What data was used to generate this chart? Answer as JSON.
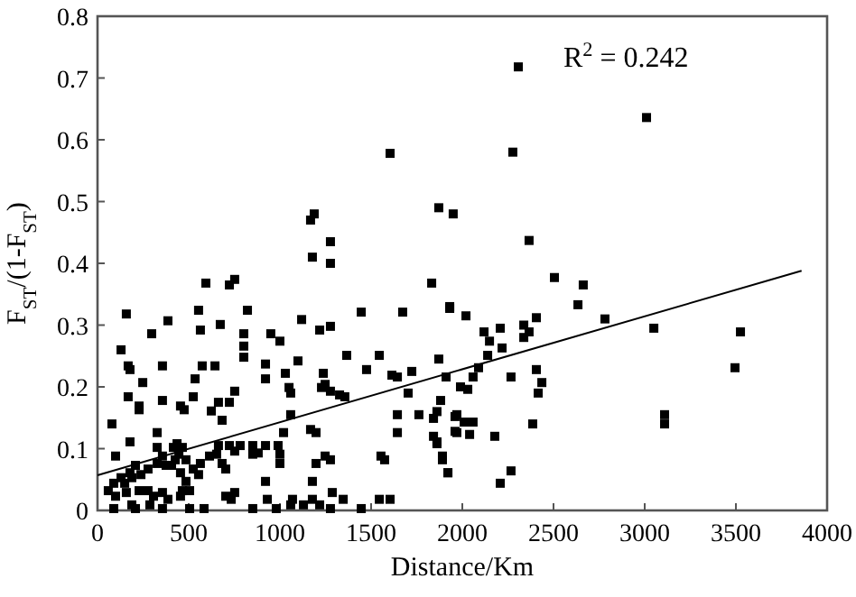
{
  "chart_data": {
    "type": "scatter",
    "xlabel": "Distance/Km",
    "ylabel": "F$_{ST}$/(1-F$_{ST}$)",
    "annotations": [
      "R$^{2}$ = 0.242"
    ],
    "xlim": [
      0,
      4000
    ],
    "xticks": [
      0,
      500,
      1000,
      1500,
      2000,
      2500,
      3000,
      3500,
      4000
    ],
    "ylim": [
      0,
      0.8
    ],
    "yticks": [
      0,
      0.1,
      0.2,
      0.3,
      0.4,
      0.5,
      0.6,
      0.7,
      0.8
    ],
    "series": [
      {
        "color": "#000000",
        "marker": "square",
        "x": [
          1168,
          1188,
          1178,
          1277,
          1277,
          1604,
          1871,
          1950,
          2307,
          2277,
          3010,
          2366,
          2505,
          2663,
          2634,
          2782,
          3050,
          3525,
          3495,
          3109,
          3109,
          1931,
          2020,
          2119,
          2208,
          2337,
          2366,
          2337,
          2406,
          2149,
          2218,
          2139,
          1871,
          2089,
          1911,
          2059,
          1990,
          2030,
          2267,
          2406,
          2436,
          2416,
          1861,
          1960,
          2010,
          2059,
          1960,
          2040,
          2178,
          2386,
          1861,
          1891,
          1921,
          2267,
          2208,
          79,
          99,
          129,
          168,
          178,
          158,
          168,
          178,
          228,
          248,
          228,
          297,
          356,
          386,
          356,
          327,
          327,
          455,
          475,
          535,
          525,
          594,
          554,
          564,
          574,
          723,
          752,
          644,
          673,
          624,
          663,
          723,
          752,
          683,
          822,
          802,
          802,
          802,
          921,
          921,
          950,
          1000,
          1030,
          1099,
          1050,
          1059,
          1059,
          1119,
          1218,
          1277,
          1238,
          1228,
          1248,
          1277,
          1327,
          1356,
          1366,
          1475,
          1446,
          1545,
          1673,
          1614,
          1644,
          1723,
          1832,
          1931,
          1881,
          1703,
          1644,
          1762,
          1644,
          1554,
          1574,
          1545,
          1604,
          1446,
          1842,
          1842,
          1861,
          1891,
          1921,
          1970,
          1970,
          1168,
          1198,
          1248,
          1198,
          1178,
          1277,
          1287,
          1347,
          1178,
          1129,
          1218,
          1277,
          1069,
          1059,
          1000,
          1000,
          990,
          1020,
          921,
          931,
          921,
          851,
          881,
          851,
          782,
          752,
          723,
          663,
          653,
          683,
          703,
          703,
          752,
          733,
          584,
          614,
          564,
          525,
          485,
          465,
          436,
          416,
          446,
          426,
          406,
          455,
          485,
          554,
          505,
          455,
          465,
          356,
          376,
          327,
          277,
          238,
          188,
          149,
          208,
          178,
          129,
          89,
          59,
          99,
          158,
          228,
          277,
          307,
          356,
          386,
          287,
          188,
          89,
          208,
          356,
          505,
          851,
          980
        ],
        "values": [
          0.47,
          0.48,
          0.41,
          0.435,
          0.4,
          0.578,
          0.49,
          0.48,
          0.718,
          0.58,
          0.636,
          0.437,
          0.377,
          0.365,
          0.333,
          0.31,
          0.295,
          0.289,
          0.231,
          0.155,
          0.14,
          0.327,
          0.315,
          0.289,
          0.295,
          0.3,
          0.289,
          0.28,
          0.312,
          0.274,
          0.263,
          0.251,
          0.245,
          0.231,
          0.216,
          0.216,
          0.2,
          0.196,
          0.216,
          0.228,
          0.207,
          0.19,
          0.16,
          0.152,
          0.143,
          0.143,
          0.128,
          0.123,
          0.12,
          0.14,
          0.108,
          0.082,
          0.061,
          0.064,
          0.044,
          0.14,
          0.088,
          0.26,
          0.234,
          0.228,
          0.318,
          0.184,
          0.111,
          0.169,
          0.207,
          0.163,
          0.286,
          0.234,
          0.307,
          0.178,
          0.126,
          0.102,
          0.169,
          0.163,
          0.213,
          0.184,
          0.368,
          0.324,
          0.292,
          0.234,
          0.365,
          0.374,
          0.234,
          0.301,
          0.161,
          0.175,
          0.175,
          0.193,
          0.146,
          0.324,
          0.286,
          0.266,
          0.248,
          0.237,
          0.213,
          0.286,
          0.274,
          0.222,
          0.242,
          0.199,
          0.19,
          0.155,
          0.309,
          0.292,
          0.298,
          0.222,
          0.199,
          0.204,
          0.193,
          0.187,
          0.184,
          0.251,
          0.228,
          0.321,
          0.251,
          0.321,
          0.219,
          0.216,
          0.225,
          0.368,
          0.33,
          0.178,
          0.19,
          0.155,
          0.155,
          0.126,
          0.088,
          0.082,
          0.018,
          0.018,
          0.003,
          0.12,
          0.149,
          0.111,
          0.088,
          0.061,
          0.126,
          0.155,
          0.131,
          0.126,
          0.088,
          0.076,
          0.047,
          0.082,
          0.029,
          0.018,
          0.018,
          0.009,
          0.009,
          0.003,
          0.018,
          0.009,
          0.076,
          0.091,
          0.105,
          0.126,
          0.047,
          0.018,
          0.105,
          0.105,
          0.093,
          0.091,
          0.105,
          0.096,
          0.105,
          0.105,
          0.091,
          0.076,
          0.067,
          0.023,
          0.029,
          0.018,
          0.003,
          0.088,
          0.076,
          0.067,
          0.082,
          0.102,
          0.108,
          0.102,
          0.091,
          0.082,
          0.073,
          0.061,
          0.047,
          0.058,
          0.032,
          0.023,
          0.032,
          0.088,
          0.073,
          0.076,
          0.067,
          0.058,
          0.053,
          0.044,
          0.073,
          0.061,
          0.053,
          0.044,
          0.032,
          0.023,
          0.029,
          0.032,
          0.032,
          0.023,
          0.029,
          0.018,
          0.009,
          0.009,
          0.003,
          0.003,
          0.003,
          0.003,
          0.003,
          0.003
        ]
      },
      {
        "type": "line",
        "color": "#000000",
        "x": [
          0,
          3860
        ],
        "values": [
          0.057,
          0.388
        ]
      }
    ]
  }
}
